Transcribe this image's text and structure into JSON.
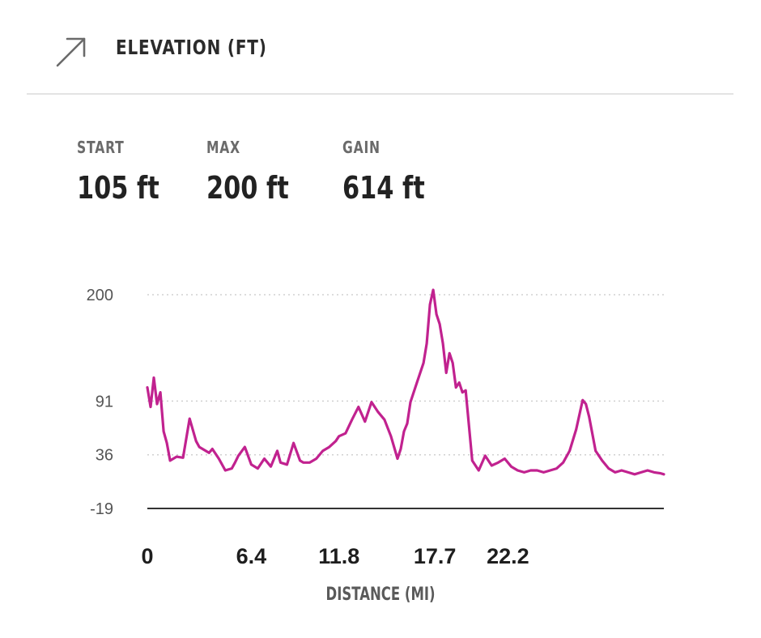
{
  "header": {
    "icon": "trending-arrow-icon",
    "title": "ELEVATION (FT)"
  },
  "stats": [
    {
      "label": "START",
      "value": "105 ft"
    },
    {
      "label": "MAX",
      "value": "200 ft"
    },
    {
      "label": "GAIN",
      "value": "614 ft"
    }
  ],
  "colors": {
    "line": "#c1228f",
    "grid": "#d0d0d0",
    "baseline": "#333333"
  },
  "chart_data": {
    "type": "line",
    "xlabel": "DISTANCE (MI)",
    "ylabel": "",
    "x_ticks": [
      "0",
      "6.4",
      "11.8",
      "17.7",
      "22.2"
    ],
    "x_tick_values": [
      0,
      6.4,
      11.8,
      17.7,
      22.2
    ],
    "y_ticks": [
      "200",
      "91",
      "36",
      "-19"
    ],
    "y_tick_values": [
      200,
      91,
      36,
      -19
    ],
    "xlim": [
      0,
      31.8
    ],
    "ylim": [
      -19,
      205
    ],
    "grid": "dotted horizontal",
    "series": [
      {
        "x": [
          0,
          0.2,
          0.4,
          0.6,
          0.8,
          1.0,
          1.2,
          1.4,
          1.6,
          1.8,
          2.2,
          2.6,
          3.0,
          3.2,
          3.4,
          3.6,
          3.8,
          4.0,
          4.4,
          4.8,
          5.2,
          5.4,
          5.6,
          6.0,
          6.4,
          6.8,
          7.2,
          7.6,
          8.0,
          8.2,
          8.6,
          9.0,
          9.4,
          9.6,
          10.0,
          10.4,
          10.8,
          11.2,
          11.6,
          11.8,
          12.2,
          12.6,
          13.0,
          13.4,
          13.8,
          14.2,
          14.6,
          15.0,
          15.4,
          15.6,
          15.8,
          16.0,
          16.2,
          16.6,
          17.0,
          17.2,
          17.4,
          17.6,
          17.8,
          18.0,
          18.2,
          18.4,
          18.6,
          18.8,
          19.0,
          19.2,
          19.4,
          19.6,
          20.0,
          20.4,
          20.8,
          21.2,
          21.6,
          22.0,
          22.4,
          22.8,
          23.2,
          23.6,
          24.0,
          24.4,
          24.8,
          25.2,
          25.6,
          26.0,
          26.4,
          26.8,
          27.0,
          27.2,
          27.6,
          28.0,
          28.4,
          28.8,
          29.2,
          29.6,
          30.0,
          30.4,
          30.8,
          31.2,
          31.6,
          31.8
        ],
        "y": [
          105,
          85,
          115,
          88,
          100,
          60,
          48,
          30,
          32,
          34,
          33,
          73,
          50,
          44,
          42,
          40,
          38,
          42,
          32,
          20,
          22,
          28,
          35,
          44,
          26,
          22,
          32,
          24,
          40,
          28,
          26,
          48,
          30,
          28,
          28,
          32,
          40,
          44,
          50,
          55,
          58,
          72,
          85,
          70,
          90,
          80,
          72,
          55,
          32,
          42,
          60,
          68,
          90,
          110,
          130,
          150,
          190,
          205,
          180,
          170,
          150,
          120,
          140,
          130,
          105,
          110,
          100,
          102,
          30,
          20,
          35,
          25,
          28,
          32,
          24,
          20,
          18,
          20,
          20,
          18,
          20,
          22,
          28,
          40,
          62,
          92,
          88,
          75,
          40,
          30,
          22,
          18,
          20,
          18,
          16,
          18,
          20,
          18,
          17,
          16
        ]
      }
    ]
  }
}
